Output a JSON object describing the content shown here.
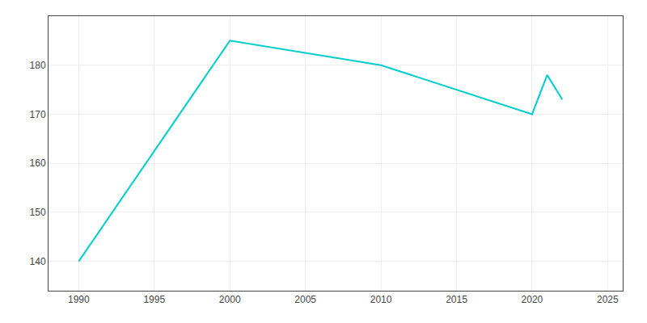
{
  "chart_data": {
    "type": "line",
    "x": [
      1990,
      2000,
      2010,
      2020,
      2021,
      2022
    ],
    "values": [
      140,
      185,
      180,
      170,
      178,
      173
    ],
    "color": "#00CDCD",
    "xlim": [
      1988,
      2026
    ],
    "ylim": [
      134,
      190
    ],
    "xticks": [
      1990,
      1995,
      2000,
      2005,
      2010,
      2015,
      2020,
      2025
    ],
    "yticks": [
      140,
      150,
      160,
      170,
      180
    ],
    "grid": true
  }
}
